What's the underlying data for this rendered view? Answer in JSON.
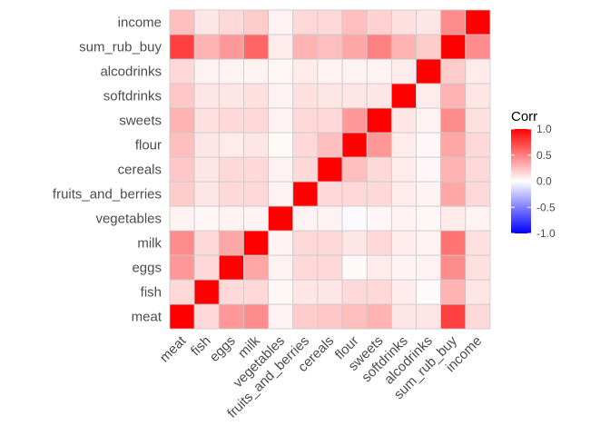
{
  "chart_data": {
    "type": "heatmap",
    "variables": [
      "meat",
      "fish",
      "eggs",
      "milk",
      "vegetables",
      "fruits_and_berries",
      "cereals",
      "flour",
      "sweets",
      "softdrinks",
      "alcodrinks",
      "sum_rub_buy",
      "income"
    ],
    "matrix": [
      [
        1.0,
        0.15,
        0.4,
        0.45,
        0.05,
        0.2,
        0.22,
        0.25,
        0.3,
        0.22,
        0.15,
        0.75,
        0.25
      ],
      [
        0.15,
        1.0,
        0.15,
        0.15,
        0.03,
        0.1,
        0.1,
        0.1,
        0.12,
        0.1,
        0.05,
        0.3,
        0.1
      ],
      [
        0.4,
        0.15,
        1.0,
        0.35,
        0.05,
        0.15,
        0.15,
        0.08,
        0.15,
        0.1,
        0.05,
        0.4,
        0.15
      ],
      [
        0.45,
        0.15,
        0.35,
        1.0,
        0.05,
        0.15,
        0.15,
        0.1,
        0.15,
        0.12,
        0.05,
        0.6,
        0.2
      ],
      [
        0.05,
        0.03,
        0.05,
        0.05,
        1.0,
        0.05,
        0.05,
        0.02,
        0.05,
        0.05,
        0.03,
        0.08,
        0.05
      ],
      [
        0.2,
        0.1,
        0.15,
        0.15,
        0.05,
        1.0,
        0.15,
        0.15,
        0.15,
        0.12,
        0.08,
        0.3,
        0.15
      ],
      [
        0.22,
        0.1,
        0.15,
        0.15,
        0.05,
        0.15,
        1.0,
        0.25,
        0.15,
        0.1,
        0.05,
        0.25,
        0.15
      ],
      [
        0.25,
        0.15,
        0.02,
        0.1,
        -0.02,
        0.15,
        0.25,
        1.0,
        0.4,
        0.1,
        0.05,
        0.35,
        0.25
      ],
      [
        0.3,
        0.15,
        0.08,
        0.15,
        0.03,
        0.15,
        0.15,
        0.4,
        1.0,
        0.1,
        0.05,
        0.5,
        0.18
      ],
      [
        0.1,
        0.08,
        0.05,
        0.08,
        0.05,
        0.08,
        0.08,
        0.08,
        0.1,
        1.0,
        0.08,
        0.3,
        0.12
      ],
      [
        0.1,
        0.02,
        0.05,
        0.05,
        0.03,
        0.05,
        0.03,
        0.03,
        0.05,
        0.08,
        1.0,
        0.2,
        0.1
      ],
      [
        0.75,
        0.3,
        0.45,
        0.55,
        0.08,
        0.35,
        0.3,
        0.35,
        0.45,
        0.3,
        0.2,
        1.0,
        0.45
      ],
      [
        0.15,
        0.1,
        0.12,
        0.12,
        0.05,
        0.15,
        0.15,
        0.15,
        0.12,
        0.1,
        0.08,
        0.45,
        1.0
      ]
    ],
    "legend": {
      "title": "Corr",
      "ticks": [
        "1.0",
        "0.5",
        "0.0",
        "-0.5",
        "-1.0"
      ],
      "tick_values": [
        1.0,
        0.5,
        0.0,
        -0.5,
        -1.0
      ],
      "limits": [
        -1.0,
        1.0
      ],
      "low_color": "#0000ff",
      "mid_color": "#ffffff",
      "high_color": "#ff0000",
      "placement": "right"
    },
    "grid": false
  }
}
